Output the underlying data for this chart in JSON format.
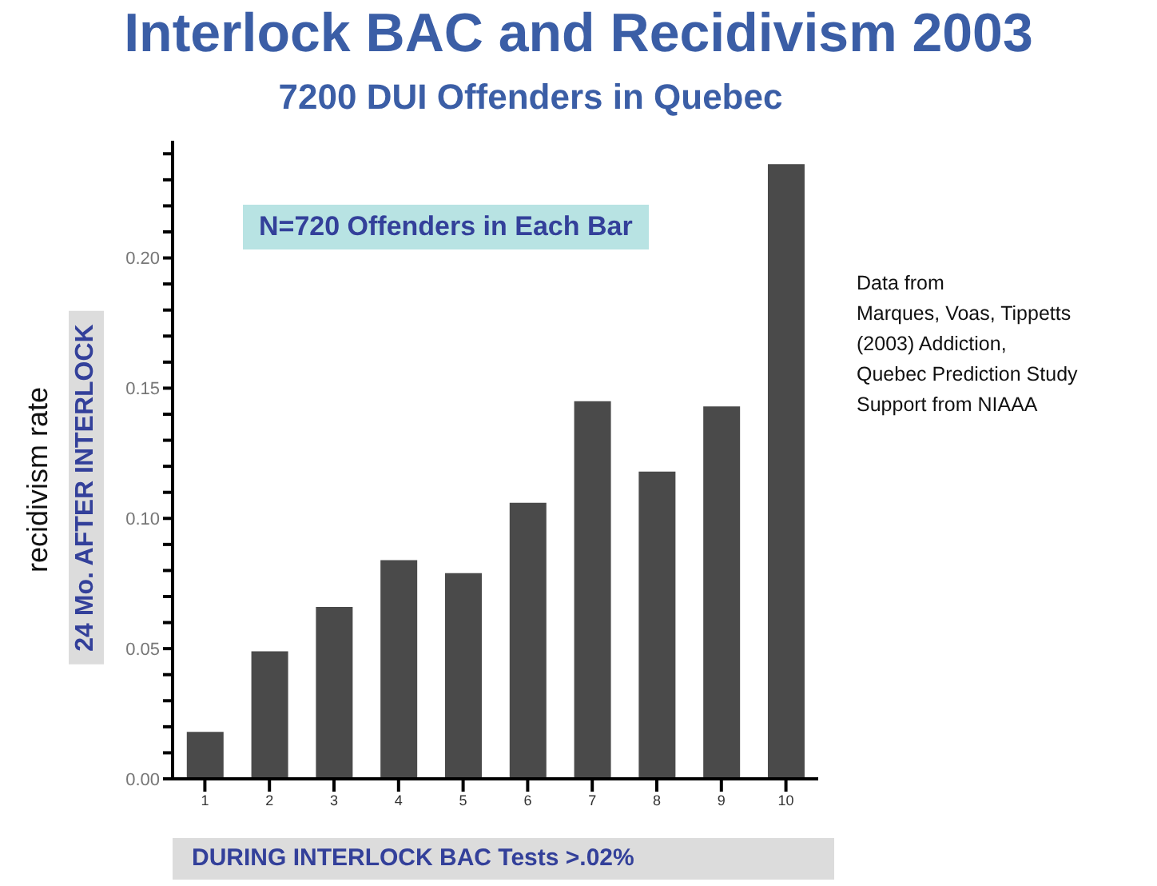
{
  "chart_data": {
    "type": "bar",
    "title": "Interlock BAC and Recidivism 2003",
    "subtitle": "7200 DUI Offenders in Quebec",
    "xlabel": "DURING INTERLOCK BAC Tests >.02%",
    "ylabel": "recidivism rate",
    "annotations": [
      "N=720 Offenders in Each Bar",
      "24 Mo.  AFTER INTERLOCK",
      "Data from\nMarques, Voas, Tippetts\n(2003) Addiction,\nQuebec Prediction Study\nSupport from NIAAA"
    ],
    "categories": [
      "1",
      "2",
      "3",
      "4",
      "5",
      "6",
      "7",
      "8",
      "9",
      "10"
    ],
    "values": [
      0.018,
      0.049,
      0.066,
      0.084,
      0.079,
      0.106,
      0.145,
      0.118,
      0.143,
      0.236
    ],
    "color": "#4a4a4a",
    "ylim": [
      0,
      0.245
    ],
    "yticks": [
      {
        "value": 0,
        "label": "0.00"
      },
      {
        "value": 0.01,
        "label": null
      },
      {
        "value": 0.02,
        "label": null
      },
      {
        "value": 0.03,
        "label": null
      },
      {
        "value": 0.04,
        "label": null
      },
      {
        "value": 0.05,
        "label": "0.05"
      },
      {
        "value": 0.06,
        "label": null
      },
      {
        "value": 0.07,
        "label": null
      },
      {
        "value": 0.08,
        "label": null
      },
      {
        "value": 0.09,
        "label": null
      },
      {
        "value": 0.1,
        "label": "0.10"
      },
      {
        "value": 0.11,
        "label": null
      },
      {
        "value": 0.12,
        "label": null
      },
      {
        "value": 0.13,
        "label": null
      },
      {
        "value": 0.14,
        "label": null
      },
      {
        "value": 0.15,
        "label": "0.15"
      },
      {
        "value": 0.16,
        "label": null
      },
      {
        "value": 0.17,
        "label": null
      },
      {
        "value": 0.18,
        "label": null
      },
      {
        "value": 0.19,
        "label": null
      },
      {
        "value": 0.2,
        "label": "0.20"
      },
      {
        "value": 0.21,
        "label": null
      },
      {
        "value": 0.22,
        "label": null
      },
      {
        "value": 0.23,
        "label": null
      },
      {
        "value": 0.24,
        "label": null
      }
    ],
    "grid": false,
    "legend": false
  }
}
